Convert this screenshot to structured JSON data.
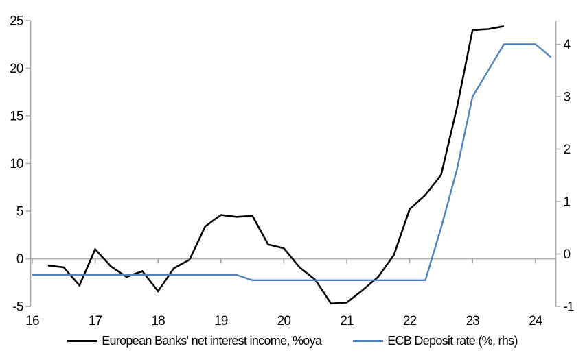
{
  "chart_data": {
    "type": "line",
    "title": "",
    "x_axis": {
      "ticks": [
        16,
        17,
        18,
        19,
        20,
        21,
        22,
        23,
        24
      ],
      "min": 16,
      "max": 24.33
    },
    "left_axis": {
      "ticks": [
        -5,
        0,
        5,
        10,
        15,
        20,
        25
      ],
      "min": -5,
      "max": 25
    },
    "right_axis": {
      "ticks": [
        -1,
        0,
        1,
        2,
        3,
        4
      ],
      "min": -1,
      "max": 4.45
    },
    "grid": "off",
    "legend_position": "bottom",
    "series": [
      {
        "id": "net-interest-income",
        "name": "European Banks' net interest income, %oya",
        "axis": "left",
        "color": "#000000",
        "x_start": 16.25,
        "x_step": 0.25,
        "values": [
          -0.7,
          -0.9,
          -2.8,
          1.0,
          -0.8,
          -1.9,
          -1.3,
          -3.4,
          -1.0,
          -0.1,
          3.4,
          4.6,
          4.4,
          4.5,
          1.5,
          1.1,
          -0.9,
          -2.2,
          -4.7,
          -4.6,
          -3.3,
          -1.9,
          0.4,
          5.2,
          6.7,
          8.8,
          15.8,
          24.0,
          24.1,
          24.4
        ]
      },
      {
        "id": "ecb-deposit-rate",
        "name": "ECB Deposit rate (%, rhs)",
        "axis": "right",
        "color": "#4F81BD",
        "x_start": 16.0,
        "x_step": 0.25,
        "values": [
          -0.4,
          -0.4,
          -0.4,
          -0.4,
          -0.4,
          -0.4,
          -0.4,
          -0.4,
          -0.4,
          -0.4,
          -0.4,
          -0.4,
          -0.4,
          -0.4,
          -0.5,
          -0.5,
          -0.5,
          -0.5,
          -0.5,
          -0.5,
          -0.5,
          -0.5,
          -0.5,
          -0.5,
          -0.5,
          -0.5,
          0.5,
          1.6,
          3.0,
          3.5,
          4.0,
          4.0,
          4.0,
          3.75
        ]
      }
    ],
    "axis_color": "#A6A6A6"
  }
}
